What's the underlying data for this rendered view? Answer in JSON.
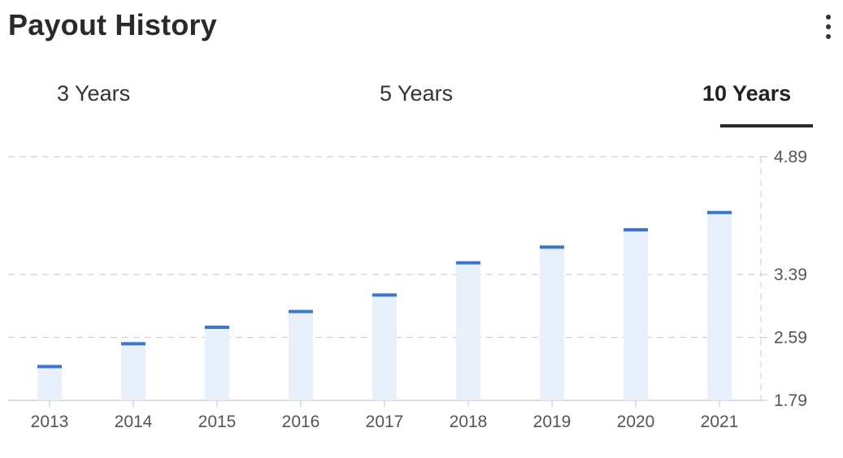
{
  "header": {
    "title": "Payout History",
    "menu_icon": "more-vertical-icon"
  },
  "tabs": [
    {
      "label": "3 Years",
      "active": false
    },
    {
      "label": "5 Years",
      "active": false
    },
    {
      "label": "10 Years",
      "active": true
    }
  ],
  "colors": {
    "bar_fill": "#e8f0fb",
    "bar_cap": "#3a76d0",
    "grid": "#cfcfcf",
    "axis_text": "#555555"
  },
  "chart_data": {
    "type": "bar",
    "title": "",
    "xlabel": "",
    "ylabel": "",
    "categories": [
      "2013",
      "2014",
      "2015",
      "2016",
      "2017",
      "2018",
      "2019",
      "2020",
      "2021"
    ],
    "values": [
      2.22,
      2.51,
      2.72,
      2.92,
      3.13,
      3.54,
      3.74,
      3.96,
      4.18
    ],
    "ylim": [
      1.79,
      4.89
    ],
    "yticks": [
      "1.79",
      "2.59",
      "3.39",
      "4.89"
    ],
    "grid": true,
    "y_axis_side": "right"
  }
}
